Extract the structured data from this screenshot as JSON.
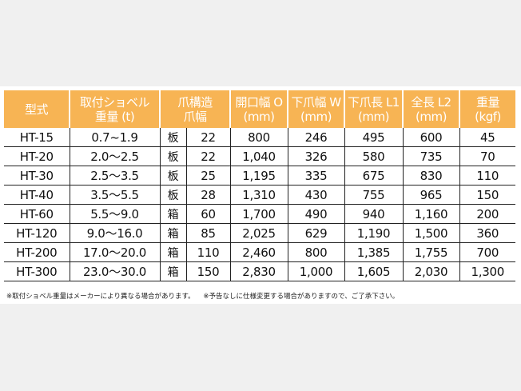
{
  "headers": [
    [
      "型式",
      ""
    ],
    [
      "取付ショベル",
      "重量 (t)"
    ],
    [
      "爪構造",
      "爪幅"
    ],
    [
      "開口幅 O",
      "(mm)"
    ],
    [
      "下爪幅 W",
      "(mm)"
    ],
    [
      "下爪長 L1",
      "(mm)"
    ],
    [
      "全長 L2",
      "(mm)"
    ],
    [
      "重量",
      "(kgf)"
    ]
  ],
  "rows": [
    [
      "HT-15",
      "0.7~1.9",
      "板",
      "22",
      "800",
      "246",
      "495",
      "600",
      "45"
    ],
    [
      "HT-20",
      "2.0～2.5",
      "板",
      "22",
      "1,040",
      "326",
      "580",
      "735",
      "70"
    ],
    [
      "HT-30",
      "2.5～3.5",
      "板",
      "25",
      "1,195",
      "335",
      "675",
      "830",
      "110"
    ],
    [
      "HT-40",
      "3.5～5.5",
      "板",
      "28",
      "1,310",
      "430",
      "755",
      "965",
      "150"
    ],
    [
      "HT-60",
      "5.5～9.0",
      "箱",
      "60",
      "1,700",
      "490",
      "940",
      "1,160",
      "200"
    ],
    [
      "HT-120",
      "9.0～16.0",
      "箱",
      "85",
      "2,025",
      "629",
      "1,190",
      "1,500",
      "360"
    ],
    [
      "HT-200",
      "17.0～20.0",
      "箱",
      "110",
      "2,460",
      "800",
      "1,385",
      "1,755",
      "700"
    ],
    [
      "HT-300",
      "23.0～30.0",
      "箱",
      "150",
      "2,830",
      "1,000",
      "1,605",
      "2,030",
      "1,300"
    ]
  ],
  "notes": [
    "※取付ショベル重量はメーカーにより異なる場合があります。",
    "※予告なしに仕様変更する場合がありますので、ご了承下さい。"
  ],
  "colors": {
    "header": "#f7b454"
  }
}
